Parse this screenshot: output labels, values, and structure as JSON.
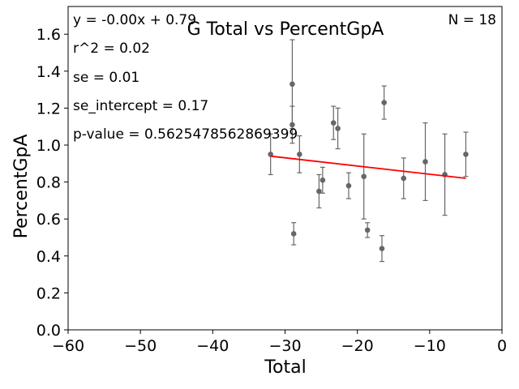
{
  "chart_data": {
    "type": "scatter",
    "title": "G Total vs PercentGpA",
    "xlabel": "Total",
    "ylabel": "PercentGpA",
    "xlim": [
      -60,
      0
    ],
    "ylim": [
      0,
      1.75
    ],
    "xticks": [
      -60,
      -50,
      -40,
      -30,
      -20,
      -10,
      0
    ],
    "yticks": [
      0.0,
      0.2,
      0.4,
      0.6,
      0.8,
      1.0,
      1.2,
      1.4,
      1.6
    ],
    "xtick_labels": [
      "−60",
      "−50",
      "−40",
      "−30",
      "−20",
      "−10",
      "0"
    ],
    "ytick_labels": [
      "0.0",
      "0.2",
      "0.4",
      "0.6",
      "0.8",
      "1.0",
      "1.2",
      "1.4",
      "1.6"
    ],
    "grid": false,
    "point_color": "#666666",
    "fit_color": "#ff0000",
    "annotations": {
      "equation": "y = -0.00x + 0.79",
      "r2": "r^2 = 0.02",
      "se": "se = 0.01",
      "se_intercept": "se_intercept = 0.17",
      "p_value": "p-value = 0.5625478562869399",
      "n": "N = 18"
    },
    "points": [
      {
        "x": -32,
        "y": 0.95,
        "err": 0.11
      },
      {
        "x": -29,
        "y": 1.33,
        "err": 0.24
      },
      {
        "x": -29,
        "y": 1.11,
        "err": 0.1
      },
      {
        "x": -28.8,
        "y": 0.52,
        "err": 0.06
      },
      {
        "x": -28,
        "y": 0.95,
        "err": 0.1
      },
      {
        "x": -25.3,
        "y": 0.75,
        "err": 0.09
      },
      {
        "x": -24.8,
        "y": 0.81,
        "err": 0.07
      },
      {
        "x": -23.3,
        "y": 1.12,
        "err": 0.09
      },
      {
        "x": -22.7,
        "y": 1.09,
        "err": 0.11
      },
      {
        "x": -21.2,
        "y": 0.78,
        "err": 0.07
      },
      {
        "x": -19.1,
        "y": 0.83,
        "err": 0.23
      },
      {
        "x": -18.6,
        "y": 0.54,
        "err": 0.04
      },
      {
        "x": -16.6,
        "y": 0.44,
        "err": 0.07
      },
      {
        "x": -16.3,
        "y": 1.23,
        "err": 0.09
      },
      {
        "x": -13.6,
        "y": 0.82,
        "err": 0.11
      },
      {
        "x": -10.6,
        "y": 0.91,
        "err": 0.21
      },
      {
        "x": -7.9,
        "y": 0.84,
        "err": 0.22
      },
      {
        "x": -5.0,
        "y": 0.95,
        "err": 0.12
      }
    ],
    "fit_line": {
      "x": [
        -32,
        -5
      ],
      "y": [
        0.94,
        0.82
      ]
    }
  }
}
